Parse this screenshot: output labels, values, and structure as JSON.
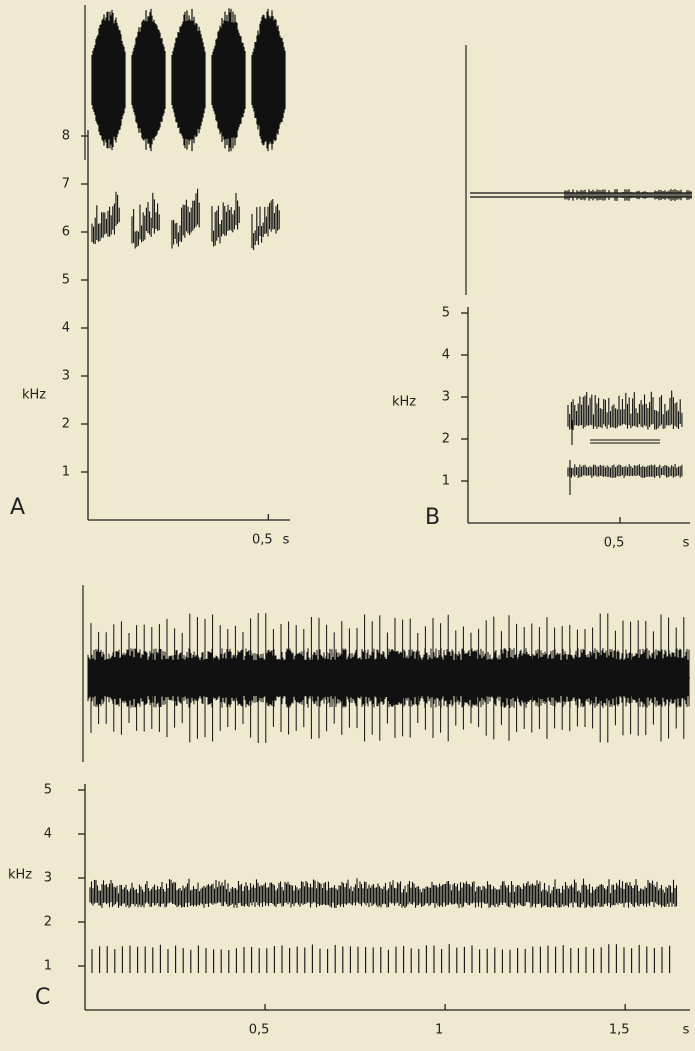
{
  "chart_data": [
    {
      "type": "spectrogram",
      "panel": "A",
      "ylabel": "kHz",
      "xlabel": "s",
      "ylim": [
        0,
        8
      ],
      "yticks": [
        1,
        2,
        3,
        4,
        5,
        6,
        7,
        8
      ],
      "xlim": [
        0,
        0.56
      ],
      "xticks": [
        {
          "value": 0.5,
          "label": "0,5"
        }
      ]
    },
    {
      "type": "spectrogram",
      "panel": "B",
      "ylabel": "kHz",
      "xlabel": "s",
      "ylim": [
        0,
        5
      ],
      "yticks": [
        1,
        2,
        3,
        4,
        5
      ],
      "xlim": [
        0,
        0.73
      ],
      "xticks": [
        {
          "value": 0.5,
          "label": "0,5"
        }
      ]
    },
    {
      "type": "spectrogram",
      "panel": "C",
      "ylabel": "kHz",
      "xlabel": "s",
      "ylim": [
        0,
        5
      ],
      "yticks": [
        1,
        2,
        3,
        4,
        5
      ],
      "xlim": [
        0,
        1.68
      ],
      "xticks": [
        {
          "value": 0.5,
          "label": "0,5"
        },
        1,
        {
          "value": 1.5,
          "label": "1,5"
        }
      ]
    }
  ]
}
